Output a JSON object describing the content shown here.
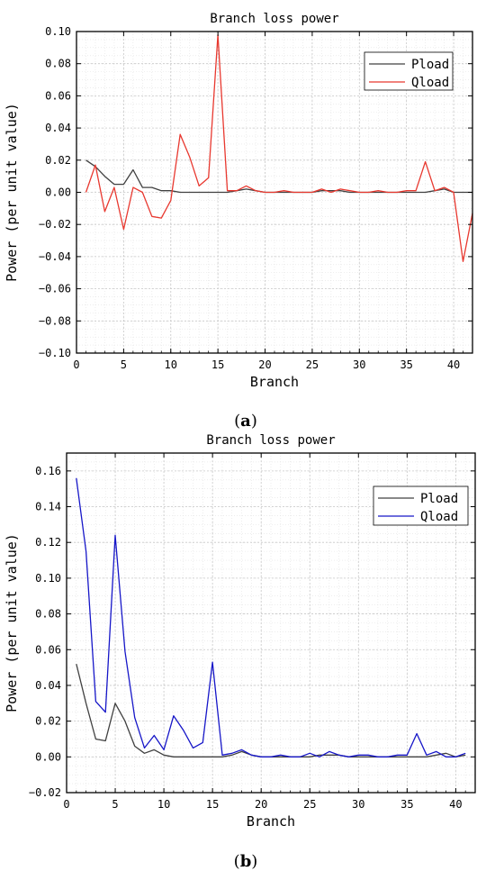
{
  "figure": {
    "panel_a_label": "a",
    "panel_b_label": "b"
  },
  "chart_data": [
    {
      "type": "line",
      "title": "Branch loss power",
      "xlabel": "Branch",
      "ylabel": "Power (per unit value)",
      "xlim": [
        0,
        42
      ],
      "ylim": [
        -0.1,
        0.1
      ],
      "x_ticks": [
        0,
        5,
        10,
        15,
        20,
        25,
        30,
        35,
        40
      ],
      "y_ticks": [
        -0.1,
        -0.08,
        -0.06,
        -0.04,
        -0.02,
        0.0,
        0.02,
        0.04,
        0.06,
        0.08,
        0.1
      ],
      "grid": true,
      "legend": "top-right",
      "series": [
        {
          "name": "Pload",
          "color": "#404040",
          "x": [
            1,
            2,
            3,
            4,
            5,
            6,
            7,
            8,
            9,
            10,
            11,
            12,
            13,
            14,
            15,
            16,
            17,
            18,
            19,
            20,
            21,
            22,
            23,
            24,
            25,
            26,
            27,
            28,
            29,
            30,
            31,
            32,
            33,
            34,
            35,
            36,
            37,
            38,
            39,
            40,
            41,
            42
          ],
          "values": [
            0.02,
            0.016,
            0.01,
            0.005,
            0.005,
            0.014,
            0.003,
            0.003,
            0.001,
            0.001,
            0.0,
            0.0,
            0.0,
            0.0,
            0.0,
            0.0,
            0.001,
            0.002,
            0.001,
            0.0,
            0.0,
            0.0,
            0.0,
            0.0,
            0.0,
            0.001,
            0.001,
            0.001,
            0.0,
            0.0,
            0.0,
            0.0,
            0.0,
            0.0,
            0.0,
            0.0,
            0.0,
            0.001,
            0.002,
            0.0,
            0.0,
            0.0
          ]
        },
        {
          "name": "Qload",
          "color": "#e8382f",
          "x": [
            1,
            2,
            3,
            4,
            5,
            6,
            7,
            8,
            9,
            10,
            11,
            12,
            13,
            14,
            15,
            16,
            17,
            18,
            19,
            20,
            21,
            22,
            23,
            24,
            25,
            26,
            27,
            28,
            29,
            30,
            31,
            32,
            33,
            34,
            35,
            36,
            37,
            38,
            39,
            40,
            41,
            42
          ],
          "values": [
            0.0,
            0.017,
            -0.012,
            0.003,
            -0.023,
            0.003,
            0.0,
            -0.015,
            -0.016,
            -0.005,
            0.036,
            0.022,
            0.004,
            0.009,
            0.098,
            0.001,
            0.001,
            0.004,
            0.001,
            0.0,
            0.0,
            0.001,
            0.0,
            0.0,
            0.0,
            0.002,
            0.0,
            0.002,
            0.001,
            0.0,
            0.0,
            0.001,
            0.0,
            0.0,
            0.001,
            0.001,
            0.019,
            0.001,
            0.003,
            0.0,
            -0.043,
            -0.013
          ]
        }
      ]
    },
    {
      "type": "line",
      "title": "Branch loss power",
      "xlabel": "Branch",
      "ylabel": "Power (per unit value)",
      "xlim": [
        0,
        42
      ],
      "ylim": [
        -0.02,
        0.17
      ],
      "x_ticks": [
        0,
        5,
        10,
        15,
        20,
        25,
        30,
        35,
        40
      ],
      "y_ticks": [
        -0.02,
        0.0,
        0.02,
        0.04,
        0.06,
        0.08,
        0.1,
        0.12,
        0.14,
        0.16
      ],
      "grid": true,
      "legend": "top-right",
      "series": [
        {
          "name": "Pload",
          "color": "#404040",
          "x": [
            1,
            2,
            3,
            4,
            5,
            6,
            7,
            8,
            9,
            10,
            11,
            12,
            13,
            14,
            15,
            16,
            17,
            18,
            19,
            20,
            21,
            22,
            23,
            24,
            25,
            26,
            27,
            28,
            29,
            30,
            31,
            32,
            33,
            34,
            35,
            36,
            37,
            38,
            39,
            40,
            41
          ],
          "values": [
            0.052,
            0.03,
            0.01,
            0.009,
            0.03,
            0.02,
            0.006,
            0.002,
            0.004,
            0.001,
            0.0,
            0.0,
            0.0,
            0.0,
            0.0,
            0.0,
            0.001,
            0.003,
            0.001,
            0.0,
            0.0,
            0.0,
            0.0,
            0.0,
            0.0,
            0.001,
            0.001,
            0.001,
            0.0,
            0.0,
            0.0,
            0.0,
            0.0,
            0.0,
            0.0,
            0.0,
            0.0,
            0.001,
            0.002,
            0.0,
            0.001
          ]
        },
        {
          "name": "Qload",
          "color": "#1616c8",
          "x": [
            1,
            2,
            3,
            4,
            5,
            6,
            7,
            8,
            9,
            10,
            11,
            12,
            13,
            14,
            15,
            16,
            17,
            18,
            19,
            20,
            21,
            22,
            23,
            24,
            25,
            26,
            27,
            28,
            29,
            30,
            31,
            32,
            33,
            34,
            35,
            36,
            37,
            38,
            39,
            40,
            41
          ],
          "values": [
            0.156,
            0.115,
            0.031,
            0.025,
            0.124,
            0.059,
            0.022,
            0.005,
            0.012,
            0.004,
            0.023,
            0.015,
            0.005,
            0.008,
            0.053,
            0.001,
            0.002,
            0.004,
            0.001,
            0.0,
            0.0,
            0.001,
            0.0,
            0.0,
            0.002,
            0.0,
            0.003,
            0.001,
            0.0,
            0.001,
            0.001,
            0.0,
            0.0,
            0.001,
            0.001,
            0.013,
            0.001,
            0.003,
            0.0,
            0.0,
            0.002
          ]
        }
      ]
    }
  ]
}
